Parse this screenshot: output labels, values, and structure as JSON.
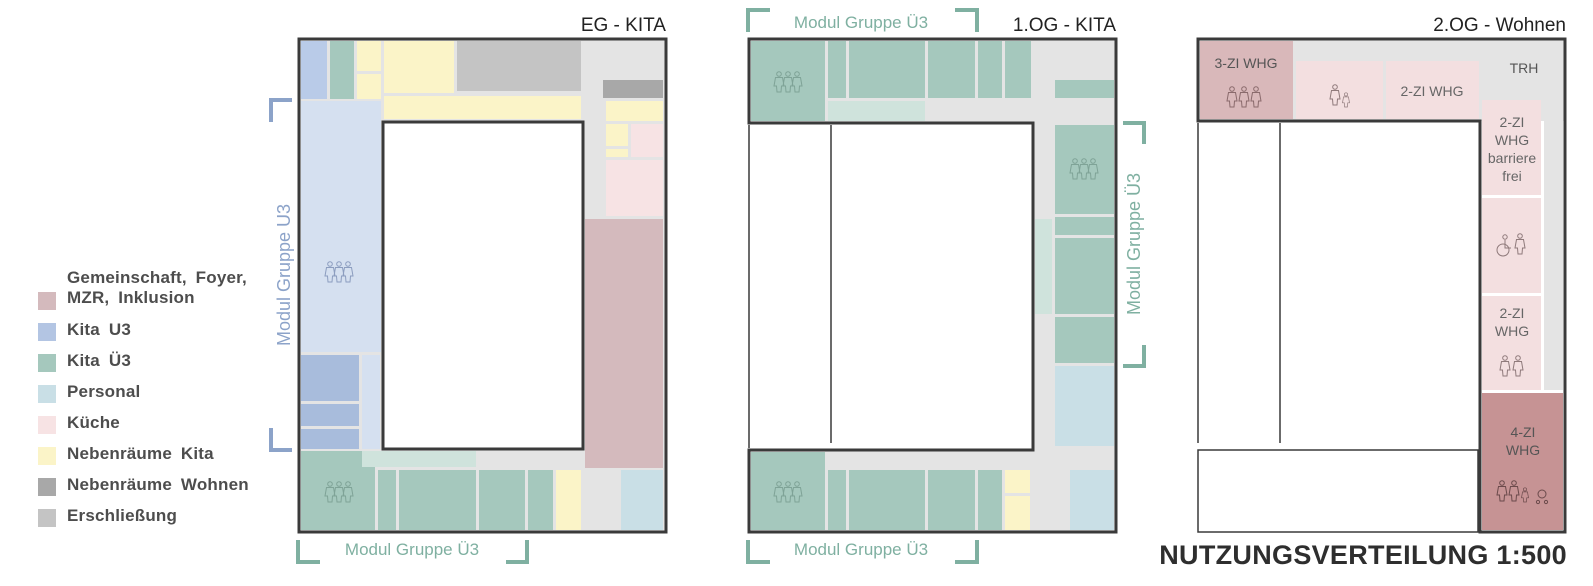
{
  "legend": [
    {
      "label": "Gemeinschaft, Foyer, MZR, Inklusion",
      "color": "#d4babd"
    },
    {
      "label": "Kita U3",
      "color": "#b3c5e3"
    },
    {
      "label": "Kita Ü3",
      "color": "#a5c8bd"
    },
    {
      "label": "Personal",
      "color": "#c9dfe6"
    },
    {
      "label": "Küche",
      "color": "#f7e3e4"
    },
    {
      "label": "Nebenräume Kita",
      "color": "#fbf4c8"
    },
    {
      "label": "Nebenräume Wohnen",
      "color": "#a8a8a8"
    },
    {
      "label": "Erschließung",
      "color": "#c4c4c4"
    }
  ],
  "plans": {
    "eg": {
      "title": "EG - KITA",
      "module_left": "Modul Gruppe U3",
      "module_bottom": "Modul Gruppe Ü3"
    },
    "og1": {
      "title": "1.OG - KITA",
      "module_top": "Modul Gruppe Ü3",
      "module_right": "Modul Gruppe Ü3",
      "module_bottom": "Modul Gruppe Ü3"
    },
    "og2": {
      "title": "2.OG - Wohnen",
      "units": {
        "whg3": "3-ZI WHG",
        "whg2_top": "2-ZI WHG",
        "trh": "TRH",
        "whg2_bf": [
          "2-ZI",
          "WHG",
          "barriere",
          "frei"
        ],
        "whg2_b": [
          "2-ZI",
          "WHG"
        ],
        "whg4": [
          "4-ZI",
          "WHG"
        ]
      }
    }
  },
  "main_title": "NUTZUNGSVERTEILUNG 1:500"
}
